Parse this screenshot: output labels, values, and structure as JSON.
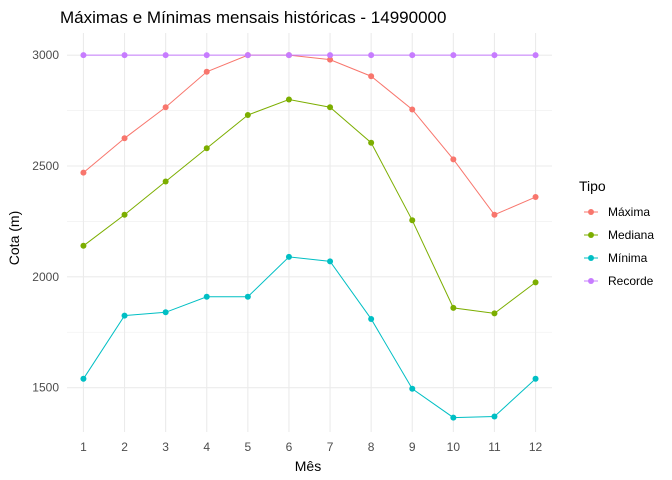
{
  "chart_data": {
    "type": "line",
    "title": "Máximas e Mínimas mensais históricas - 14990000",
    "xlabel": "Mês",
    "ylabel": "Cota (m)",
    "x": [
      1,
      2,
      3,
      4,
      5,
      6,
      7,
      8,
      9,
      10,
      11,
      12
    ],
    "x_tick_labels": [
      "1",
      "2",
      "3",
      "4",
      "5",
      "6",
      "7",
      "8",
      "9",
      "10",
      "11",
      "12"
    ],
    "y_ticks": [
      1500,
      2000,
      2500,
      3000
    ],
    "y_tick_labels": [
      "1500",
      "2000",
      "2500",
      "3000"
    ],
    "ylim": [
      1300,
      3100
    ],
    "grid": true,
    "legend": {
      "title": "Tipo",
      "placement": "right"
    },
    "series": [
      {
        "name": "Máxima",
        "color": "#F8766D",
        "values": [
          2470,
          2625,
          2765,
          2925,
          3000,
          3000,
          2980,
          2905,
          2755,
          2530,
          2280,
          2360
        ]
      },
      {
        "name": "Mediana",
        "color": "#7CAE00",
        "values": [
          2140,
          2280,
          2430,
          2580,
          2730,
          2800,
          2765,
          2605,
          2255,
          1860,
          1835,
          1975
        ]
      },
      {
        "name": "Mínima",
        "color": "#00BFC4",
        "values": [
          1540,
          1825,
          1840,
          1910,
          1910,
          2090,
          2070,
          1810,
          1495,
          1365,
          1370,
          1540
        ]
      },
      {
        "name": "Recorde",
        "color": "#C77CFF",
        "values": [
          3000,
          3000,
          3000,
          3000,
          3000,
          3000,
          3000,
          3000,
          3000,
          3000,
          3000,
          3000
        ]
      }
    ]
  }
}
